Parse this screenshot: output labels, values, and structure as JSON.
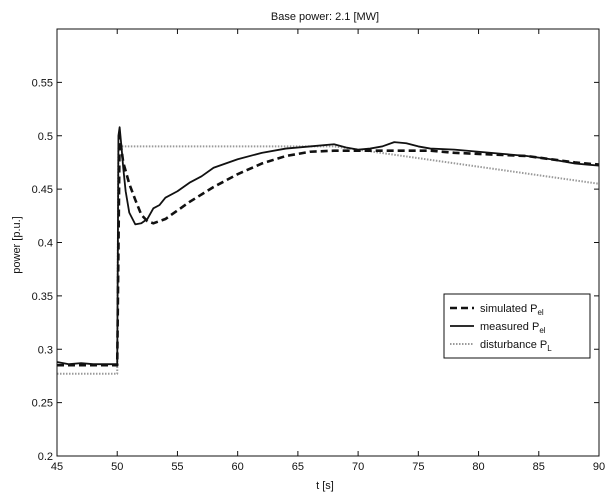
{
  "chart_data": {
    "type": "line",
    "title": "Base power: 2.1 [MW]",
    "xlabel": "t [s]",
    "ylabel": "power [p.u.]",
    "xlim": [
      45,
      90
    ],
    "ylim": [
      0.2,
      0.6
    ],
    "xticks": [
      45,
      50,
      55,
      60,
      65,
      70,
      75,
      80,
      85,
      90
    ],
    "yticks": [
      0.2,
      0.25,
      0.3,
      0.35,
      0.4,
      0.45,
      0.5,
      0.55
    ],
    "xtick_labels": [
      "45",
      "50",
      "55",
      "60",
      "65",
      "70",
      "75",
      "80",
      "85",
      "90"
    ],
    "ytick_labels": [
      "0.2",
      "0.25",
      "0.3",
      "0.35",
      "0.4",
      "0.45",
      "0.5",
      "0.55"
    ],
    "grid": false,
    "legend_position": "right",
    "series": [
      {
        "name": "simulated P",
        "name_sub": "el",
        "style": "dashed",
        "color": "#111111",
        "x": [
          45,
          50,
          50.2,
          50.5,
          51,
          51.5,
          52,
          52.5,
          53,
          54,
          55,
          56,
          58,
          60,
          62,
          64,
          66,
          68,
          70,
          72,
          74,
          76,
          78,
          80,
          82,
          84,
          86,
          88,
          90
        ],
        "y": [
          0.285,
          0.285,
          0.5,
          0.475,
          0.455,
          0.44,
          0.426,
          0.42,
          0.418,
          0.422,
          0.43,
          0.438,
          0.452,
          0.464,
          0.474,
          0.481,
          0.485,
          0.486,
          0.486,
          0.486,
          0.486,
          0.486,
          0.484,
          0.483,
          0.482,
          0.481,
          0.478,
          0.475,
          0.473
        ]
      },
      {
        "name": "measured P",
        "name_sub": "el",
        "style": "solid",
        "color": "#111111",
        "x": [
          45,
          46,
          47,
          48,
          49,
          50,
          50.1,
          50.2,
          50.35,
          50.5,
          50.7,
          51,
          51.5,
          52,
          52.5,
          53,
          53.5,
          54,
          55,
          56,
          57,
          58,
          59,
          60,
          62,
          64,
          66,
          68,
          69,
          70,
          71,
          72,
          73,
          74,
          75,
          76,
          78,
          80,
          82,
          84,
          86,
          88,
          89,
          90
        ],
        "y": [
          0.288,
          0.286,
          0.287,
          0.286,
          0.286,
          0.286,
          0.5,
          0.508,
          0.49,
          0.47,
          0.448,
          0.428,
          0.417,
          0.418,
          0.422,
          0.432,
          0.435,
          0.442,
          0.448,
          0.456,
          0.462,
          0.47,
          0.474,
          0.478,
          0.484,
          0.488,
          0.49,
          0.492,
          0.489,
          0.487,
          0.488,
          0.49,
          0.494,
          0.493,
          0.49,
          0.488,
          0.487,
          0.485,
          0.483,
          0.481,
          0.478,
          0.474,
          0.473,
          0.472
        ]
      },
      {
        "name": "disturbance P",
        "name_sub": "L",
        "style": "dotted",
        "color": "#9a9a9a",
        "x": [
          45,
          50,
          50.1,
          52,
          55,
          60,
          65,
          68,
          70,
          75,
          80,
          85,
          90
        ],
        "y": [
          0.277,
          0.277,
          0.49,
          0.49,
          0.49,
          0.49,
          0.49,
          0.49,
          0.487,
          0.479,
          0.471,
          0.463,
          0.455
        ]
      }
    ]
  }
}
